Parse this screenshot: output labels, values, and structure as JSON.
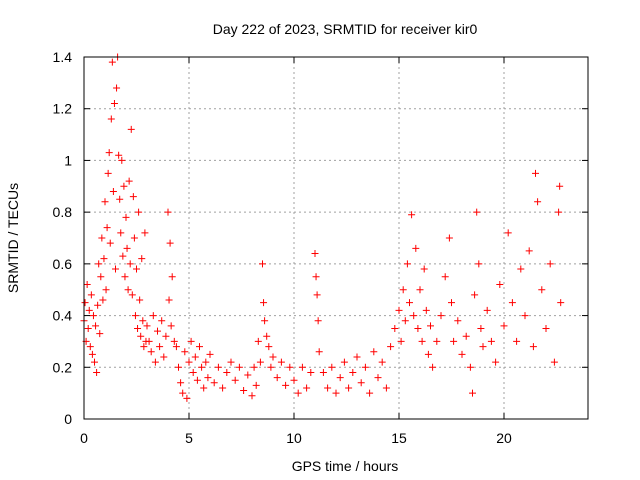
{
  "chart_data": {
    "type": "scatter",
    "title": "Day 222 of 2023, SRMTID for receiver kir0",
    "xlabel": "GPS time / hours",
    "ylabel": "SRMTID / TECUs",
    "xlim": [
      0,
      24
    ],
    "ylim": [
      0,
      1.4
    ],
    "xticks": [
      0,
      5,
      10,
      15,
      20
    ],
    "yticks": [
      0,
      0.2,
      0.4,
      0.6,
      0.8,
      1,
      1.2,
      1.4
    ],
    "xtick_labels": [
      "0",
      "5",
      "10",
      "15",
      "20"
    ],
    "ytick_labels": [
      "0",
      "0.2",
      "0.4",
      "0.6",
      "0.8",
      "1",
      "1.2",
      "1.4"
    ],
    "grid": true,
    "marker": "+",
    "color": "#ff0000",
    "series": [
      {
        "name": "SRMTID",
        "points": [
          [
            0.0,
            0.38
          ],
          [
            0.05,
            0.45
          ],
          [
            0.1,
            0.3
          ],
          [
            0.15,
            0.52
          ],
          [
            0.2,
            0.35
          ],
          [
            0.25,
            0.42
          ],
          [
            0.3,
            0.28
          ],
          [
            0.35,
            0.48
          ],
          [
            0.4,
            0.25
          ],
          [
            0.45,
            0.4
          ],
          [
            0.5,
            0.22
          ],
          [
            0.55,
            0.36
          ],
          [
            0.6,
            0.18
          ],
          [
            0.65,
            0.44
          ],
          [
            0.7,
            0.6
          ],
          [
            0.75,
            0.33
          ],
          [
            0.8,
            0.55
          ],
          [
            0.85,
            0.7
          ],
          [
            0.9,
            0.46
          ],
          [
            0.95,
            0.62
          ],
          [
            1.0,
            0.84
          ],
          [
            1.05,
            0.5
          ],
          [
            1.1,
            0.74
          ],
          [
            1.15,
            0.95
          ],
          [
            1.2,
            1.03
          ],
          [
            1.25,
            0.68
          ],
          [
            1.3,
            1.16
          ],
          [
            1.35,
            1.38
          ],
          [
            1.4,
            0.88
          ],
          [
            1.45,
            1.22
          ],
          [
            1.5,
            0.58
          ],
          [
            1.55,
            1.28
          ],
          [
            1.6,
            1.4
          ],
          [
            1.65,
            1.02
          ],
          [
            1.7,
            0.85
          ],
          [
            1.75,
            0.72
          ],
          [
            1.8,
            1.0
          ],
          [
            1.85,
            0.63
          ],
          [
            1.9,
            0.9
          ],
          [
            1.95,
            0.55
          ],
          [
            2.0,
            0.78
          ],
          [
            2.05,
            0.66
          ],
          [
            2.1,
            0.5
          ],
          [
            2.15,
            0.92
          ],
          [
            2.2,
            0.6
          ],
          [
            2.25,
            1.12
          ],
          [
            2.3,
            0.48
          ],
          [
            2.35,
            0.86
          ],
          [
            2.4,
            0.7
          ],
          [
            2.45,
            0.4
          ],
          [
            2.5,
            0.58
          ],
          [
            2.55,
            0.35
          ],
          [
            2.6,
            0.8
          ],
          [
            2.65,
            0.46
          ],
          [
            2.7,
            0.32
          ],
          [
            2.75,
            0.62
          ],
          [
            2.8,
            0.38
          ],
          [
            2.85,
            0.28
          ],
          [
            2.9,
            0.72
          ],
          [
            2.95,
            0.3
          ],
          [
            3.0,
            0.36
          ],
          [
            3.1,
            0.3
          ],
          [
            3.2,
            0.26
          ],
          [
            3.3,
            0.4
          ],
          [
            3.4,
            0.22
          ],
          [
            3.5,
            0.34
          ],
          [
            3.6,
            0.28
          ],
          [
            3.7,
            0.38
          ],
          [
            3.8,
            0.24
          ],
          [
            3.9,
            0.32
          ],
          [
            4.0,
            0.8
          ],
          [
            4.05,
            0.46
          ],
          [
            4.1,
            0.68
          ],
          [
            4.15,
            0.36
          ],
          [
            4.2,
            0.55
          ],
          [
            4.3,
            0.3
          ],
          [
            4.4,
            0.28
          ],
          [
            4.5,
            0.2
          ],
          [
            4.6,
            0.14
          ],
          [
            4.7,
            0.1
          ],
          [
            4.8,
            0.26
          ],
          [
            4.9,
            0.08
          ],
          [
            5.0,
            0.22
          ],
          [
            5.1,
            0.3
          ],
          [
            5.2,
            0.18
          ],
          [
            5.3,
            0.24
          ],
          [
            5.4,
            0.15
          ],
          [
            5.5,
            0.28
          ],
          [
            5.6,
            0.2
          ],
          [
            5.7,
            0.12
          ],
          [
            5.8,
            0.22
          ],
          [
            5.9,
            0.16
          ],
          [
            6.0,
            0.25
          ],
          [
            6.2,
            0.14
          ],
          [
            6.4,
            0.2
          ],
          [
            6.6,
            0.12
          ],
          [
            6.8,
            0.18
          ],
          [
            7.0,
            0.22
          ],
          [
            7.2,
            0.15
          ],
          [
            7.4,
            0.2
          ],
          [
            7.6,
            0.11
          ],
          [
            7.8,
            0.17
          ],
          [
            8.0,
            0.09
          ],
          [
            8.1,
            0.2
          ],
          [
            8.2,
            0.13
          ],
          [
            8.3,
            0.3
          ],
          [
            8.4,
            0.22
          ],
          [
            8.5,
            0.6
          ],
          [
            8.55,
            0.45
          ],
          [
            8.6,
            0.38
          ],
          [
            8.7,
            0.32
          ],
          [
            8.8,
            0.28
          ],
          [
            8.9,
            0.2
          ],
          [
            9.0,
            0.24
          ],
          [
            9.2,
            0.16
          ],
          [
            9.4,
            0.22
          ],
          [
            9.6,
            0.13
          ],
          [
            9.8,
            0.2
          ],
          [
            10.0,
            0.15
          ],
          [
            10.2,
            0.1
          ],
          [
            10.4,
            0.2
          ],
          [
            10.6,
            0.12
          ],
          [
            10.8,
            0.18
          ],
          [
            11.0,
            0.64
          ],
          [
            11.05,
            0.55
          ],
          [
            11.1,
            0.48
          ],
          [
            11.15,
            0.38
          ],
          [
            11.2,
            0.26
          ],
          [
            11.4,
            0.18
          ],
          [
            11.6,
            0.12
          ],
          [
            11.8,
            0.2
          ],
          [
            12.0,
            0.1
          ],
          [
            12.2,
            0.16
          ],
          [
            12.4,
            0.22
          ],
          [
            12.6,
            0.12
          ],
          [
            12.8,
            0.18
          ],
          [
            13.0,
            0.24
          ],
          [
            13.2,
            0.14
          ],
          [
            13.4,
            0.2
          ],
          [
            13.6,
            0.1
          ],
          [
            13.8,
            0.26
          ],
          [
            14.0,
            0.16
          ],
          [
            14.2,
            0.22
          ],
          [
            14.4,
            0.12
          ],
          [
            14.6,
            0.28
          ],
          [
            14.8,
            0.35
          ],
          [
            15.0,
            0.42
          ],
          [
            15.1,
            0.3
          ],
          [
            15.2,
            0.5
          ],
          [
            15.3,
            0.38
          ],
          [
            15.4,
            0.6
          ],
          [
            15.5,
            0.45
          ],
          [
            15.6,
            0.79
          ],
          [
            15.7,
            0.4
          ],
          [
            15.8,
            0.66
          ],
          [
            15.9,
            0.35
          ],
          [
            16.0,
            0.5
          ],
          [
            16.1,
            0.3
          ],
          [
            16.2,
            0.58
          ],
          [
            16.3,
            0.42
          ],
          [
            16.4,
            0.25
          ],
          [
            16.5,
            0.36
          ],
          [
            16.6,
            0.2
          ],
          [
            16.8,
            0.3
          ],
          [
            17.0,
            0.4
          ],
          [
            17.2,
            0.55
          ],
          [
            17.4,
            0.7
          ],
          [
            17.5,
            0.45
          ],
          [
            17.6,
            0.3
          ],
          [
            17.8,
            0.38
          ],
          [
            18.0,
            0.25
          ],
          [
            18.2,
            0.32
          ],
          [
            18.4,
            0.2
          ],
          [
            18.5,
            0.1
          ],
          [
            18.6,
            0.48
          ],
          [
            18.7,
            0.8
          ],
          [
            18.8,
            0.6
          ],
          [
            18.9,
            0.35
          ],
          [
            19.0,
            0.28
          ],
          [
            19.2,
            0.42
          ],
          [
            19.4,
            0.3
          ],
          [
            19.6,
            0.22
          ],
          [
            19.8,
            0.52
          ],
          [
            20.0,
            0.36
          ],
          [
            20.2,
            0.72
          ],
          [
            20.4,
            0.45
          ],
          [
            20.6,
            0.3
          ],
          [
            20.8,
            0.58
          ],
          [
            21.0,
            0.4
          ],
          [
            21.2,
            0.65
          ],
          [
            21.4,
            0.28
          ],
          [
            21.5,
            0.95
          ],
          [
            21.6,
            0.84
          ],
          [
            21.8,
            0.5
          ],
          [
            22.0,
            0.35
          ],
          [
            22.2,
            0.6
          ],
          [
            22.4,
            0.22
          ],
          [
            22.6,
            0.8
          ],
          [
            22.65,
            0.9
          ],
          [
            22.7,
            0.45
          ]
        ]
      }
    ]
  }
}
